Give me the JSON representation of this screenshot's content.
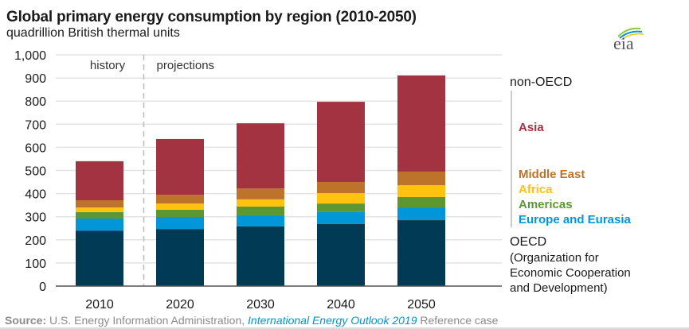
{
  "header": {
    "title": "Global primary energy consumption by region (2010-2050)",
    "subtitle": "quadrillion British thermal units",
    "logo_text": "eia"
  },
  "annotations": {
    "history": "history",
    "projections": "projections"
  },
  "legend": {
    "group_nonoecd": "non-OECD",
    "group_oecd": "OECD",
    "oecd_desc_1": "(Organization for",
    "oecd_desc_2": "Economic Cooperation",
    "oecd_desc_3": "and Development)"
  },
  "source": {
    "label": "Source:",
    "agency": " U.S. Energy Information Administration, ",
    "publication": "International Energy Outlook 2019",
    "suffix": " Reference case"
  },
  "chart_data": {
    "type": "bar",
    "stacked": true,
    "title": "Global primary energy consumption by region (2010-2050)",
    "ylabel": "quadrillion British thermal units",
    "xlabel": "",
    "categories": [
      "2010",
      "2020",
      "2030",
      "2040",
      "2050"
    ],
    "ylim": [
      0,
      1000
    ],
    "yticks": [
      0,
      100,
      200,
      300,
      400,
      500,
      600,
      700,
      800,
      900,
      1000
    ],
    "ytick_labels": [
      "0",
      "100",
      "200",
      "300",
      "400",
      "500",
      "600",
      "700",
      "800",
      "900",
      "1,000"
    ],
    "grid": true,
    "legend_position": "right",
    "series": [
      {
        "name": "OECD",
        "color": "#003a54",
        "values": [
          240,
          247,
          258,
          268,
          285
        ]
      },
      {
        "name": "Europe and Eurasia",
        "color": "#0096d7",
        "values": [
          52,
          52,
          48,
          52,
          55
        ]
      },
      {
        "name": "Americas",
        "color": "#5d9732",
        "values": [
          28,
          31,
          38,
          37,
          45
        ]
      },
      {
        "name": "Africa",
        "color": "#ffc20e",
        "values": [
          20,
          27,
          31,
          45,
          51
        ]
      },
      {
        "name": "Middle East",
        "color": "#bd732a",
        "values": [
          31,
          38,
          47,
          48,
          59
        ]
      },
      {
        "name": "Asia",
        "color": "#a33340",
        "values": [
          169,
          241,
          282,
          347,
          416
        ]
      }
    ],
    "totals": [
      540,
      636,
      704,
      797,
      911
    ],
    "divider_after_category": "2010"
  }
}
